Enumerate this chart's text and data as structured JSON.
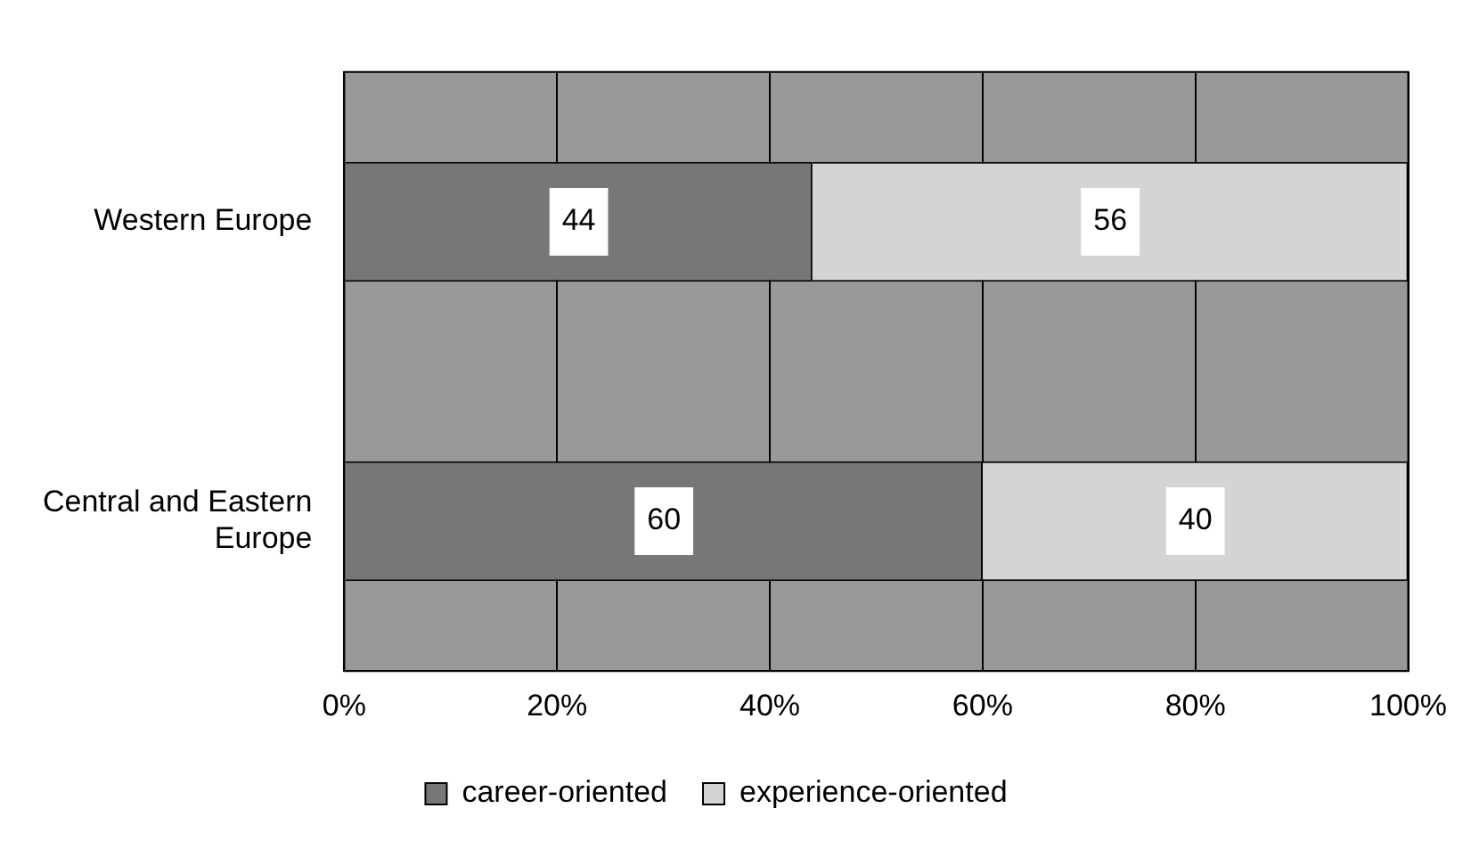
{
  "chart_data": {
    "type": "bar",
    "orientation": "horizontal",
    "stacked": true,
    "categories": [
      "Western Europe",
      "Central and Eastern Europe"
    ],
    "series": [
      {
        "name": "career-oriented",
        "color": "#777777",
        "values": [
          44,
          60
        ]
      },
      {
        "name": "experience-oriented",
        "color": "#d4d4d4",
        "values": [
          56,
          40
        ]
      }
    ],
    "xlim": [
      0,
      100
    ],
    "xticks": [
      {
        "value": 0,
        "label": "0%"
      },
      {
        "value": 20,
        "label": "20%"
      },
      {
        "value": 40,
        "label": "40%"
      },
      {
        "value": 60,
        "label": "60%"
      },
      {
        "value": 80,
        "label": "80%"
      },
      {
        "value": 100,
        "label": "100%"
      }
    ],
    "grid": "x",
    "legend": "bottom",
    "data_labels": true
  }
}
